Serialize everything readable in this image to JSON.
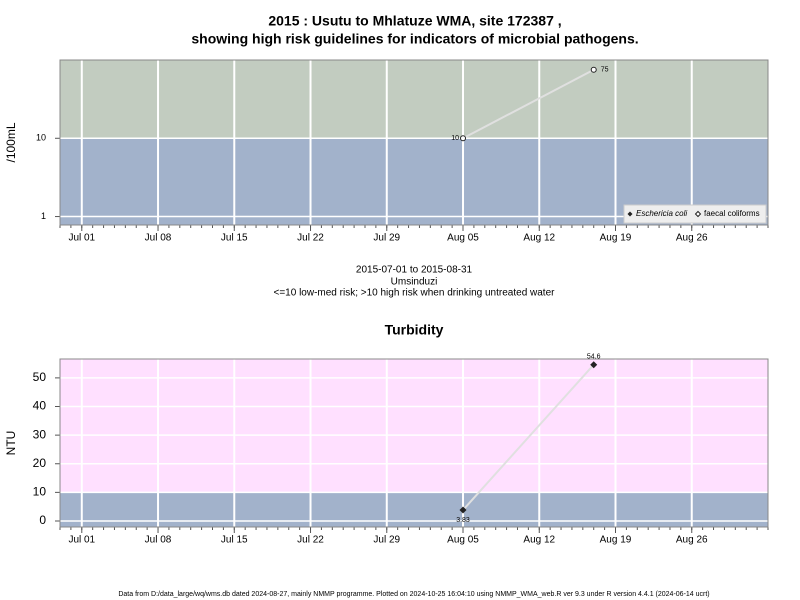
{
  "title_lines": [
    "2015 : Usutu to Mhlatuze WMA, site 172387 ,",
    "showing high risk guidelines for indicators of microbial pathogens."
  ],
  "caption_lines": [
    "2015-07-01 to 2015-08-31",
    "Umsinduzi",
    "<=10 low-med risk; >10 high risk when drinking untreated water"
  ],
  "footer": "Data from D:/data_large/wq/wms.db dated 2024-08-27, mainly NMMP programme. Plotted on 2024-10-25 16:04:10 using NMMP_WMA_web.R ver 9.3 under R version 4.4.1 (2024-06-14 ucrt)",
  "chart_data": [
    {
      "type": "line",
      "ylabel": "/100mL",
      "log_y": true,
      "grid": true,
      "legend": "bottom-right",
      "xlim": [
        "2015-06-29",
        "2015-09-02"
      ],
      "xticks": [
        {
          "value": "2015-07-01",
          "label": "Jul 01"
        },
        {
          "value": "2015-07-08",
          "label": "Jul 08"
        },
        {
          "value": "2015-07-15",
          "label": "Jul 15"
        },
        {
          "value": "2015-07-22",
          "label": "Jul 22"
        },
        {
          "value": "2015-07-29",
          "label": "Jul 29"
        },
        {
          "value": "2015-08-05",
          "label": "Aug 05"
        },
        {
          "value": "2015-08-12",
          "label": "Aug 12"
        },
        {
          "value": "2015-08-19",
          "label": "Aug 19"
        },
        {
          "value": "2015-08-26",
          "label": "Aug 26"
        }
      ],
      "ylim": [
        0.78,
        100
      ],
      "yticks": [
        1,
        10
      ],
      "threshold": 10,
      "zone_colors": {
        "below": "#a2b2cb",
        "above": "#c2ccc0"
      },
      "series": [
        {
          "name": "Eschericia coli",
          "color": "#222222",
          "marker": "filled",
          "x": [],
          "values": []
        },
        {
          "name": "faecal coliforms",
          "color": "#222222",
          "marker": "open",
          "x": [
            "2015-08-05",
            "2015-08-17"
          ],
          "values": [
            10,
            75
          ]
        }
      ]
    },
    {
      "type": "line",
      "title": "Turbidity",
      "ylabel": "NTU",
      "log_y": false,
      "grid": true,
      "xlim": [
        "2015-06-29",
        "2015-09-02"
      ],
      "xticks": [
        {
          "value": "2015-07-01",
          "label": "Jul 01"
        },
        {
          "value": "2015-07-08",
          "label": "Jul 08"
        },
        {
          "value": "2015-07-15",
          "label": "Jul 15"
        },
        {
          "value": "2015-07-22",
          "label": "Jul 22"
        },
        {
          "value": "2015-07-29",
          "label": "Jul 29"
        },
        {
          "value": "2015-08-05",
          "label": "Aug 05"
        },
        {
          "value": "2015-08-12",
          "label": "Aug 12"
        },
        {
          "value": "2015-08-19",
          "label": "Aug 19"
        },
        {
          "value": "2015-08-26",
          "label": "Aug 26"
        }
      ],
      "ylim": [
        -2.1,
        56.6
      ],
      "yticks": [
        0,
        10,
        20,
        30,
        40,
        50
      ],
      "threshold": 10,
      "zone_colors": {
        "below": "#a2b2cb",
        "above": "#ffe0ff"
      },
      "series": [
        {
          "name": "Turbidity",
          "color": "#222222",
          "marker": "filled",
          "x": [
            "2015-08-05",
            "2015-08-17"
          ],
          "values": [
            3.83,
            54.6
          ]
        }
      ]
    }
  ]
}
